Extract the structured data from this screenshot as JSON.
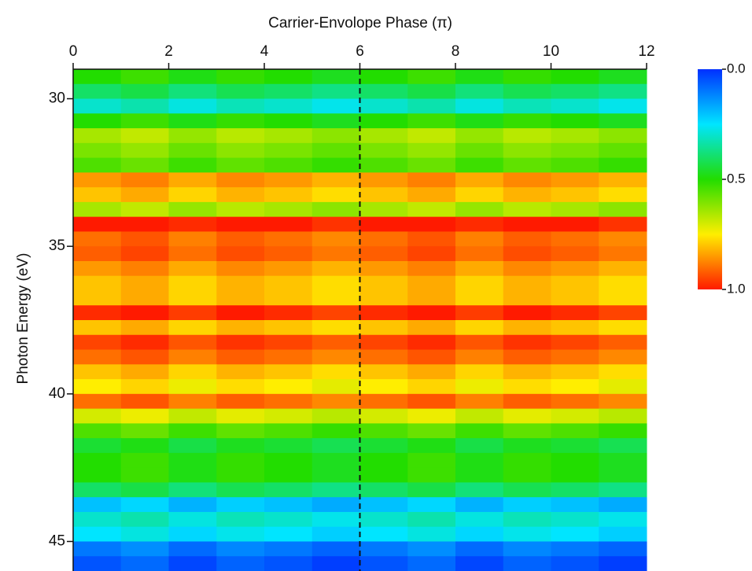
{
  "chart_data": {
    "type": "heatmap",
    "title": "Carrier-Envolope Phase (π)",
    "y_label": "Photon Energy (eV)",
    "xbins": [
      0,
      1,
      2,
      3,
      4,
      5,
      6,
      7,
      8,
      9,
      10,
      11,
      12
    ],
    "ybins": [
      29,
      29.5,
      30,
      30.5,
      31,
      31.5,
      32,
      32.5,
      33,
      33.5,
      34,
      34.5,
      35,
      35.5,
      36,
      36.5,
      37,
      37.5,
      38,
      38.5,
      39,
      39.5,
      40,
      40.5,
      41,
      41.5,
      42,
      42.5,
      43,
      43.5,
      44,
      44.5,
      45,
      45.5,
      46
    ],
    "xlim": [
      0,
      12
    ],
    "xticks": [
      0,
      2,
      4,
      6,
      8,
      10,
      12
    ],
    "ylim": [
      29,
      46
    ],
    "yticks": [
      30,
      35,
      40,
      45
    ],
    "vline": 6,
    "colorscale": [
      "#0030ff",
      "#00e5ff",
      "#22dd00",
      "#ffee00",
      "#ff1a00"
    ],
    "zlim": [
      0,
      1
    ],
    "zticks": [
      {
        "value": 0,
        "label": "0.0"
      },
      {
        "value": 0.5,
        "label": "0.5"
      },
      {
        "value": 1,
        "label": "1.0"
      }
    ],
    "values": [
      [
        0.5,
        0.53,
        0.48,
        0.52,
        0.5,
        0.47,
        0.5,
        0.53,
        0.48,
        0.52,
        0.5,
        0.47
      ],
      [
        0.4,
        0.43,
        0.38,
        0.42,
        0.4,
        0.37,
        0.4,
        0.43,
        0.38,
        0.42,
        0.4,
        0.37
      ],
      [
        0.3,
        0.33,
        0.28,
        0.32,
        0.3,
        0.27,
        0.3,
        0.33,
        0.28,
        0.32,
        0.3,
        0.27
      ],
      [
        0.5,
        0.53,
        0.48,
        0.52,
        0.5,
        0.47,
        0.5,
        0.53,
        0.48,
        0.52,
        0.5,
        0.47
      ],
      [
        0.65,
        0.68,
        0.63,
        0.67,
        0.65,
        0.62,
        0.65,
        0.68,
        0.63,
        0.67,
        0.65,
        0.62
      ],
      [
        0.6,
        0.63,
        0.58,
        0.62,
        0.6,
        0.57,
        0.6,
        0.63,
        0.58,
        0.62,
        0.6,
        0.57
      ],
      [
        0.55,
        0.58,
        0.53,
        0.57,
        0.55,
        0.52,
        0.55,
        0.58,
        0.53,
        0.57,
        0.55,
        0.52
      ],
      [
        0.85,
        0.88,
        0.83,
        0.87,
        0.85,
        0.82,
        0.85,
        0.88,
        0.83,
        0.87,
        0.85,
        0.82
      ],
      [
        0.8,
        0.83,
        0.78,
        0.82,
        0.8,
        0.77,
        0.8,
        0.83,
        0.78,
        0.82,
        0.8,
        0.77
      ],
      [
        0.65,
        0.68,
        0.63,
        0.67,
        0.65,
        0.62,
        0.65,
        0.68,
        0.63,
        0.67,
        0.65,
        0.62
      ],
      [
        1,
        1,
        0.98,
        1,
        1,
        0.97,
        1,
        1,
        0.98,
        1,
        1,
        0.97
      ],
      [
        0.9,
        0.93,
        0.88,
        0.92,
        0.9,
        0.87,
        0.9,
        0.93,
        0.88,
        0.92,
        0.9,
        0.87
      ],
      [
        0.92,
        0.95,
        0.9,
        0.94,
        0.92,
        0.89,
        0.92,
        0.95,
        0.9,
        0.94,
        0.92,
        0.89
      ],
      [
        0.85,
        0.88,
        0.83,
        0.87,
        0.85,
        0.82,
        0.85,
        0.88,
        0.83,
        0.87,
        0.85,
        0.82
      ],
      [
        0.8,
        0.83,
        0.78,
        0.82,
        0.8,
        0.77,
        0.8,
        0.83,
        0.78,
        0.82,
        0.8,
        0.77
      ],
      [
        0.8,
        0.83,
        0.78,
        0.82,
        0.8,
        0.77,
        0.8,
        0.83,
        0.78,
        0.82,
        0.8,
        0.77
      ],
      [
        0.98,
        1,
        0.96,
        1,
        0.98,
        0.95,
        0.98,
        1,
        0.96,
        1,
        0.98,
        0.95
      ],
      [
        0.8,
        0.83,
        0.78,
        0.82,
        0.8,
        0.77,
        0.8,
        0.83,
        0.78,
        0.82,
        0.8,
        0.77
      ],
      [
        0.95,
        0.98,
        0.93,
        0.97,
        0.95,
        0.92,
        0.95,
        0.98,
        0.93,
        0.97,
        0.95,
        0.92
      ],
      [
        0.9,
        0.93,
        0.88,
        0.92,
        0.9,
        0.87,
        0.9,
        0.93,
        0.88,
        0.92,
        0.9,
        0.87
      ],
      [
        0.8,
        0.83,
        0.78,
        0.82,
        0.8,
        0.77,
        0.8,
        0.83,
        0.78,
        0.82,
        0.8,
        0.77
      ],
      [
        0.75,
        0.78,
        0.73,
        0.77,
        0.75,
        0.72,
        0.75,
        0.78,
        0.73,
        0.77,
        0.75,
        0.72
      ],
      [
        0.9,
        0.93,
        0.88,
        0.92,
        0.9,
        0.87,
        0.9,
        0.93,
        0.88,
        0.92,
        0.9,
        0.87
      ],
      [
        0.7,
        0.73,
        0.68,
        0.72,
        0.7,
        0.67,
        0.7,
        0.73,
        0.68,
        0.72,
        0.7,
        0.67
      ],
      [
        0.55,
        0.58,
        0.53,
        0.57,
        0.55,
        0.52,
        0.55,
        0.58,
        0.53,
        0.57,
        0.55,
        0.52
      ],
      [
        0.45,
        0.48,
        0.43,
        0.47,
        0.45,
        0.42,
        0.45,
        0.48,
        0.43,
        0.47,
        0.45,
        0.42
      ],
      [
        0.5,
        0.53,
        0.48,
        0.52,
        0.5,
        0.47,
        0.5,
        0.53,
        0.48,
        0.52,
        0.5,
        0.47
      ],
      [
        0.5,
        0.53,
        0.48,
        0.52,
        0.5,
        0.47,
        0.5,
        0.53,
        0.48,
        0.52,
        0.5,
        0.47
      ],
      [
        0.4,
        0.43,
        0.38,
        0.42,
        0.4,
        0.37,
        0.4,
        0.43,
        0.38,
        0.42,
        0.4,
        0.37
      ],
      [
        0.2,
        0.23,
        0.18,
        0.22,
        0.2,
        0.17,
        0.2,
        0.23,
        0.18,
        0.22,
        0.2,
        0.17
      ],
      [
        0.3,
        0.33,
        0.28,
        0.32,
        0.3,
        0.27,
        0.3,
        0.33,
        0.28,
        0.32,
        0.3,
        0.27
      ],
      [
        0.25,
        0.28,
        0.23,
        0.27,
        0.25,
        0.22,
        0.25,
        0.28,
        0.23,
        0.27,
        0.25,
        0.22
      ],
      [
        0.1,
        0.13,
        0.08,
        0.12,
        0.1,
        0.07,
        0.1,
        0.13,
        0.08,
        0.12,
        0.1,
        0.07
      ],
      [
        0.05,
        0.08,
        0.03,
        0.07,
        0.05,
        0.02,
        0.05,
        0.08,
        0.03,
        0.07,
        0.05,
        0.02
      ]
    ]
  }
}
